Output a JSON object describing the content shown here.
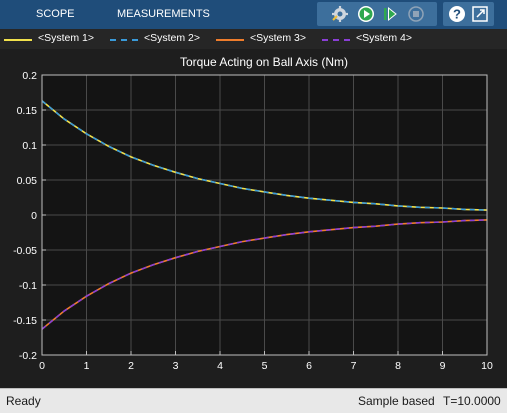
{
  "toolstrip": {
    "tabs": [
      "SCOPE",
      "MEASUREMENTS"
    ],
    "icons": [
      "configuration-gear-icon",
      "run-icon",
      "step-forward-icon",
      "stop-icon",
      "help-icon",
      "undock-icon"
    ],
    "colors": {
      "toolstrip": "#1f4d7a",
      "button_group": "#3d6f9c",
      "run": "#2fa84f"
    }
  },
  "legend": [
    {
      "label": "<System 1>",
      "color": "#f2e14c",
      "style": "solid"
    },
    {
      "label": "<System 2>",
      "color": "#3a9ad9",
      "style": "dashed"
    },
    {
      "label": "<System 3>",
      "color": "#ef7d2c",
      "style": "solid"
    },
    {
      "label": "<System 4>",
      "color": "#8a3fd6",
      "style": "dashed"
    }
  ],
  "chart_data": {
    "type": "line",
    "title": "Torque Acting on Ball Axis (Nm)",
    "xlabel": "",
    "ylabel": "",
    "xlim": [
      0,
      10
    ],
    "ylim": [
      -0.2,
      0.2
    ],
    "xticks": [
      "0",
      "1",
      "2",
      "3",
      "4",
      "5",
      "6",
      "7",
      "8",
      "9",
      "10"
    ],
    "yticks": [
      "0.2",
      "0.15",
      "0.1",
      "0.05",
      "0",
      "-0.05",
      "-0.1",
      "-0.15",
      "-0.2"
    ],
    "grid": true,
    "x": [
      0,
      0.5,
      1,
      1.5,
      2,
      2.5,
      3,
      3.5,
      4,
      4.5,
      5,
      5.5,
      6,
      6.5,
      7,
      7.5,
      8,
      8.5,
      9,
      9.5,
      10
    ],
    "series": [
      {
        "name": "<System 1>",
        "color": "#f2e14c",
        "values": [
          0.163,
          0.137,
          0.116,
          0.098,
          0.083,
          0.071,
          0.061,
          0.052,
          0.045,
          0.038,
          0.033,
          0.028,
          0.024,
          0.021,
          0.018,
          0.016,
          0.013,
          0.011,
          0.01,
          0.008,
          0.007
        ]
      },
      {
        "name": "<System 2>",
        "color": "#3a9ad9",
        "dashed": true,
        "values": [
          0.163,
          0.137,
          0.116,
          0.098,
          0.083,
          0.071,
          0.061,
          0.052,
          0.045,
          0.038,
          0.033,
          0.028,
          0.024,
          0.021,
          0.018,
          0.016,
          0.013,
          0.011,
          0.01,
          0.008,
          0.007
        ]
      },
      {
        "name": "<System 3>",
        "color": "#ef7d2c",
        "values": [
          -0.163,
          -0.137,
          -0.116,
          -0.098,
          -0.083,
          -0.071,
          -0.061,
          -0.052,
          -0.045,
          -0.038,
          -0.033,
          -0.028,
          -0.024,
          -0.021,
          -0.018,
          -0.016,
          -0.013,
          -0.011,
          -0.01,
          -0.008,
          -0.007
        ]
      },
      {
        "name": "<System 4>",
        "color": "#8a3fd6",
        "dashed": true,
        "values": [
          -0.163,
          -0.137,
          -0.116,
          -0.098,
          -0.083,
          -0.071,
          -0.061,
          -0.052,
          -0.045,
          -0.038,
          -0.033,
          -0.028,
          -0.024,
          -0.021,
          -0.018,
          -0.016,
          -0.013,
          -0.011,
          -0.01,
          -0.008,
          -0.007
        ]
      }
    ],
    "colors": {
      "plot_bg": "#141414",
      "grid": "#4a4a4a",
      "axis": "#bfbfbf",
      "text": "#ffffff"
    }
  },
  "status": {
    "left": "Ready",
    "mode": "Sample based",
    "time": "T=10.0000"
  }
}
